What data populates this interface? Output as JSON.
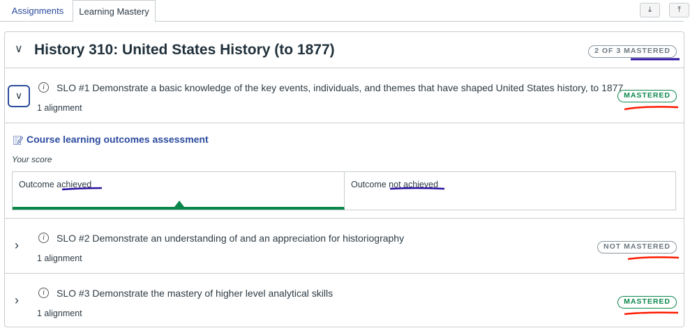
{
  "tabs": [
    {
      "label": "Assignments"
    },
    {
      "label": "Learning Mastery"
    }
  ],
  "toolbar": {
    "export_icon": "download-icon",
    "import_icon": "upload-icon"
  },
  "course": {
    "title": "History 310: United States History (to 1877)",
    "badge": "2 OF 3 MASTERED"
  },
  "outcomes": [
    {
      "title": "SLO #1 Demonstrate a basic knowledge of the key events, individuals, and themes that have shaped United States history, to 1877",
      "alignments": "1 alignment",
      "status": "MASTERED",
      "expanded": true
    },
    {
      "title": "SLO #2 Demonstrate an understanding of and an appreciation for historiography",
      "alignments": "1 alignment",
      "status": "NOT MASTERED",
      "expanded": false
    },
    {
      "title": "SLO #3 Demonstrate the mastery of higher level analytical skills",
      "alignments": "1 alignment",
      "status": "MASTERED",
      "expanded": false
    }
  ],
  "assessment": {
    "title": "Course learning outcomes assessment",
    "score_label": "Your score",
    "levels": [
      {
        "label": "Outcome achieved",
        "selected": true
      },
      {
        "label": "Outcome not achieved",
        "selected": false
      }
    ]
  },
  "colors": {
    "mastered": "#0b874b",
    "link": "#2b4a9e",
    "annotation_blue": "#2a0fa0",
    "annotation_red": "#ff1a00"
  }
}
